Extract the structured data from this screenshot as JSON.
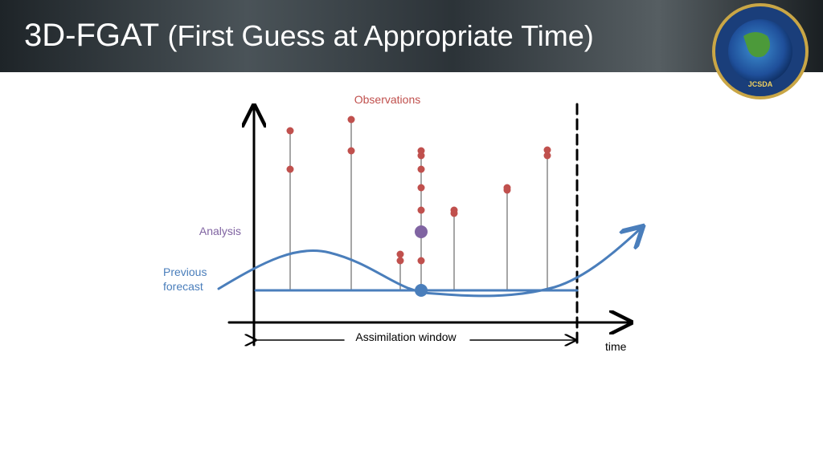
{
  "header": {
    "title": "3D-FGAT",
    "subtitle": "(First Guess at Appropriate Time)",
    "logo": "JCSDA"
  },
  "diagram": {
    "observations_label": "Observations",
    "analysis_label": "Analysis",
    "previous_forecast_label": [
      "Previous",
      "forecast"
    ],
    "window_label": "Assimilation window",
    "time_label": "time"
  }
}
